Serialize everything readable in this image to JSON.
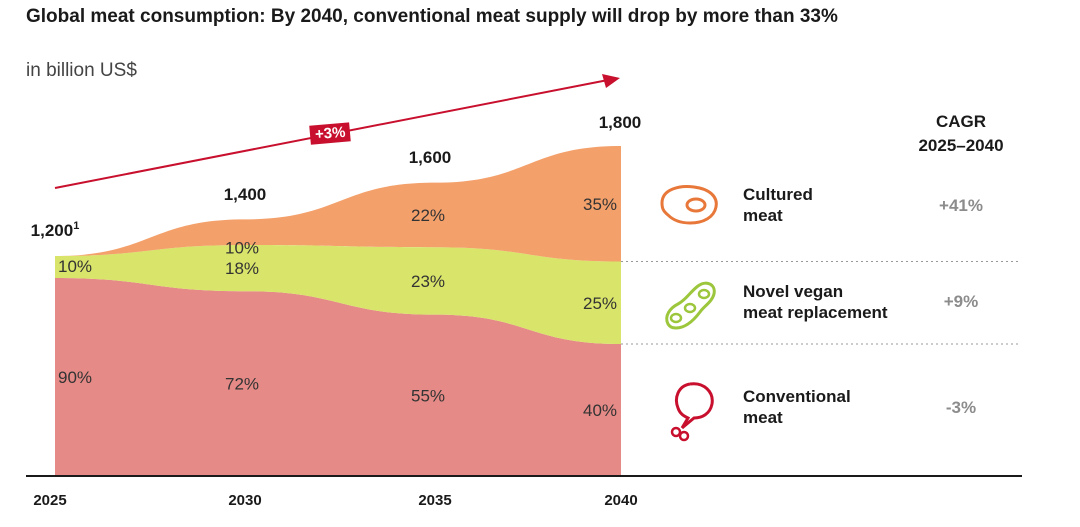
{
  "title": "Global meat consumption: By 2040, conventional meat supply will drop by more than 33%",
  "subtitle": "in billion US$",
  "growth_label": "+3%",
  "cagr_header": "CAGR\n2025–2040",
  "colors": {
    "cultured": "#f4a06b",
    "vegan": "#d9e46a",
    "conventional": "#e58a86",
    "accent": "#c8102e",
    "cultured_icon": "#e8773a",
    "vegan_icon": "#9cc63b",
    "conventional_icon": "#c8102e"
  },
  "legend": [
    {
      "key": "cultured",
      "label": "Cultured\nmeat",
      "cagr": "+41%",
      "icon": "steak-icon"
    },
    {
      "key": "vegan",
      "label": "Novel vegan\nmeat replacement",
      "cagr": "+9%",
      "icon": "soybean-icon"
    },
    {
      "key": "conventional",
      "label": "Conventional\nmeat",
      "cagr": "-3%",
      "icon": "chicken-leg-icon"
    }
  ],
  "chart_data": {
    "type": "area",
    "stacked": true,
    "title": "Global meat consumption: By 2040, conventional meat supply will drop by more than 33%",
    "ylabel": "in billion US$",
    "x": [
      "2025",
      "2030",
      "2035",
      "2040"
    ],
    "totals": [
      1200,
      1400,
      1600,
      1800
    ],
    "total_labels": [
      "1,200",
      "1,400",
      "1,600",
      "1,800"
    ],
    "total_footnote": "1",
    "series": [
      {
        "name": "Conventional meat",
        "key": "conventional",
        "shares": [
          90,
          72,
          55,
          40
        ],
        "labels": [
          "90%",
          "72%",
          "55%",
          "40%"
        ]
      },
      {
        "name": "Novel vegan meat replacement",
        "key": "vegan",
        "shares": [
          10,
          18,
          23,
          25
        ],
        "labels": [
          "10%",
          "18%",
          "23%",
          "25%"
        ]
      },
      {
        "name": "Cultured meat",
        "key": "cultured",
        "shares": [
          0,
          10,
          22,
          35
        ],
        "labels": [
          "",
          "10%",
          "22%",
          "35%"
        ]
      }
    ],
    "ylim": [
      0,
      1800
    ],
    "grid": false,
    "legend_position": "right"
  }
}
